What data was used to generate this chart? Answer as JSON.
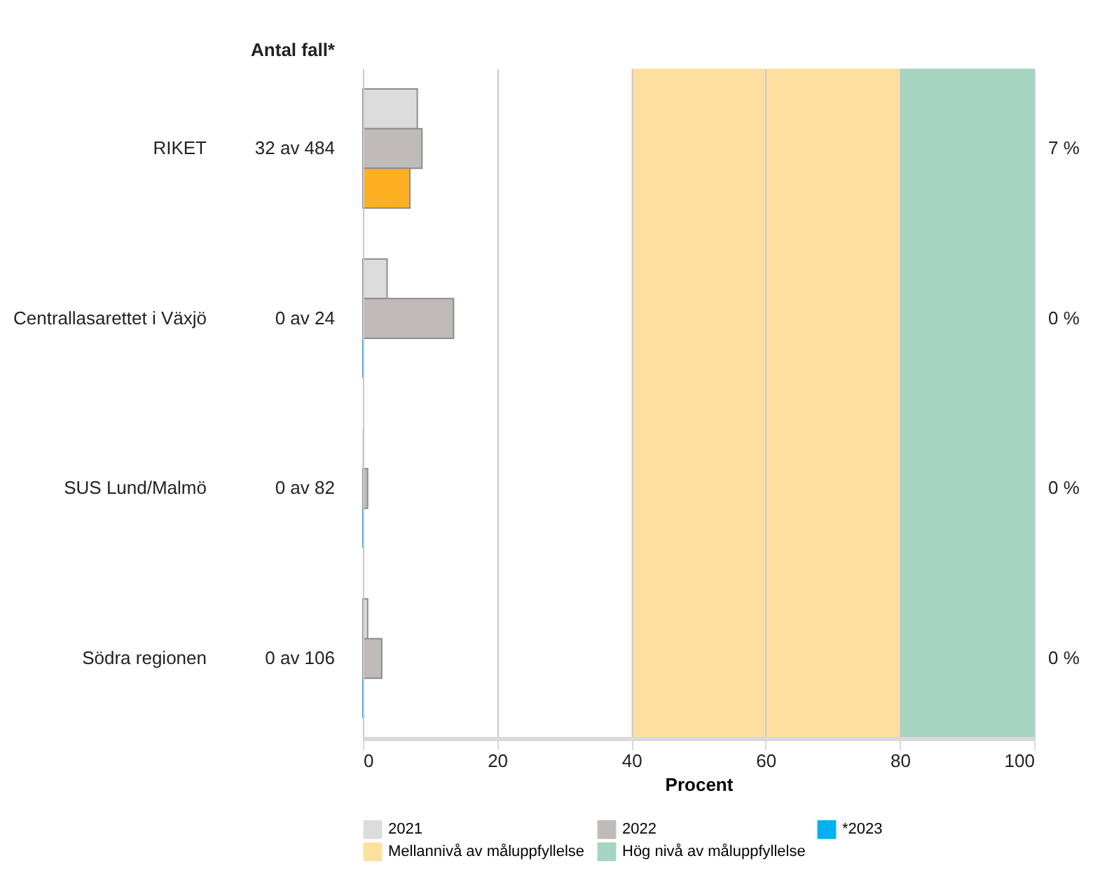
{
  "chart_data": {
    "type": "bar",
    "orientation": "horizontal",
    "xlabel": "Procent",
    "categories": [
      "RIKET",
      "Centrallasarettet i Växjö",
      "SUS Lund/Malmö",
      "Södra regionen"
    ],
    "series": [
      {
        "name": "2021",
        "color": "#dcdcdc",
        "values": [
          8.1,
          3.6,
          0,
          0.7
        ]
      },
      {
        "name": "2022",
        "color": "#c0bbb8",
        "values": [
          8.8,
          13.5,
          0.7,
          2.8
        ]
      },
      {
        "name": "*2023",
        "color": "#00b0f0",
        "colors": [
          "#fdb022",
          "#00b0f0",
          "#00b0f0",
          "#00b0f0"
        ],
        "values": [
          7,
          0,
          0,
          0
        ],
        "value_labels": [
          "7 %",
          "0 %",
          "0 %",
          "0 %"
        ]
      }
    ],
    "xlim": [
      0,
      100
    ],
    "xticks": [
      0,
      20,
      40,
      60,
      80,
      100
    ],
    "grid": "x",
    "legend": "bottom",
    "bands": [
      {
        "axis": "x",
        "from": 40,
        "to": 80,
        "label": "Mellannivå av måluppfyllelse",
        "color": "#fde0a0"
      },
      {
        "axis": "x",
        "from": 80,
        "to": 100,
        "label": "Hög nivå av måluppfyllelse",
        "color": "#a5d5c0"
      }
    ],
    "annotations": [
      "Antal fall*",
      "32 av 484",
      "0 av 24",
      "0 av 82",
      "0 av 106"
    ]
  }
}
